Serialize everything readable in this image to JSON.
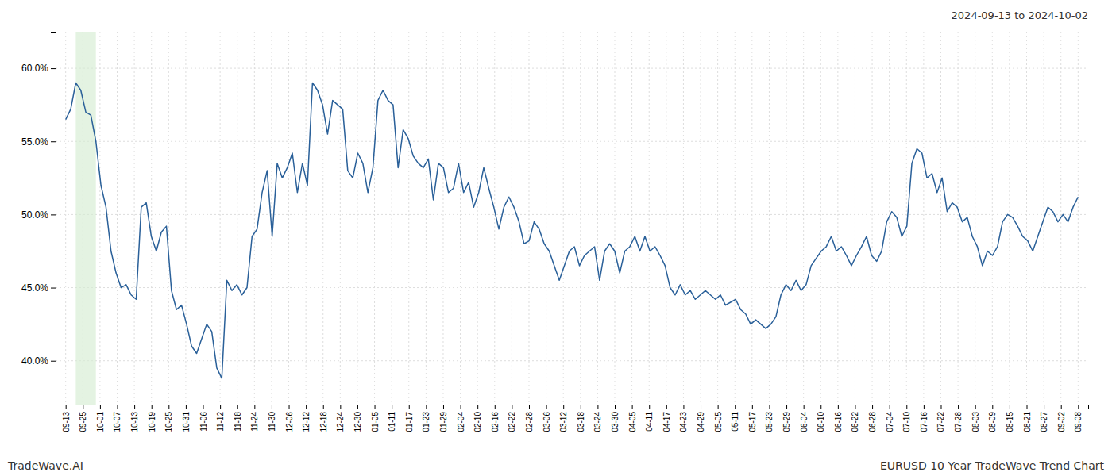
{
  "chart_data": {
    "type": "line",
    "title": "2024-09-13 to 2024-10-02",
    "annotations": [
      {
        "text": "TradeWave.AI"
      },
      {
        "text": "EURUSD 10 Year TradeWave Trend Chart"
      }
    ],
    "color": "#2a6099",
    "grid": true,
    "highlight": {
      "start": 2,
      "end": 6,
      "color": "#d6ecd2"
    },
    "xlim": [
      -2,
      203
    ],
    "ylim": [
      37.0,
      62.5
    ],
    "yticks": [
      {
        "value": 40.0,
        "label": "40.0%"
      },
      {
        "value": 45.0,
        "label": "45.0%"
      },
      {
        "value": 50.0,
        "label": "50.0%"
      },
      {
        "value": 55.0,
        "label": "55.0%"
      },
      {
        "value": 60.0,
        "label": "60.0%"
      }
    ],
    "xticks": [
      {
        "value": 0,
        "label": "09-13"
      },
      {
        "value": 3.407,
        "label": "09-25"
      },
      {
        "value": 6.814,
        "label": "10-01"
      },
      {
        "value": 10.22,
        "label": "10-07"
      },
      {
        "value": 13.627,
        "label": "10-13"
      },
      {
        "value": 17.034,
        "label": "10-19"
      },
      {
        "value": 20.441,
        "label": "10-25"
      },
      {
        "value": 23.847,
        "label": "10-31"
      },
      {
        "value": 27.254,
        "label": "11-06"
      },
      {
        "value": 30.661,
        "label": "11-12"
      },
      {
        "value": 34.068,
        "label": "11-18"
      },
      {
        "value": 37.475,
        "label": "11-24"
      },
      {
        "value": 40.881,
        "label": "11-30"
      },
      {
        "value": 44.288,
        "label": "12-06"
      },
      {
        "value": 47.695,
        "label": "12-12"
      },
      {
        "value": 51.102,
        "label": "12-18"
      },
      {
        "value": 54.508,
        "label": "12-24"
      },
      {
        "value": 57.915,
        "label": "12-30"
      },
      {
        "value": 61.322,
        "label": "01-05"
      },
      {
        "value": 64.729,
        "label": "01-11"
      },
      {
        "value": 68.136,
        "label": "01-17"
      },
      {
        "value": 71.542,
        "label": "01-23"
      },
      {
        "value": 74.949,
        "label": "01-29"
      },
      {
        "value": 78.356,
        "label": "02-04"
      },
      {
        "value": 81.763,
        "label": "02-10"
      },
      {
        "value": 85.169,
        "label": "02-16"
      },
      {
        "value": 88.576,
        "label": "02-22"
      },
      {
        "value": 91.983,
        "label": "02-28"
      },
      {
        "value": 95.39,
        "label": "03-06"
      },
      {
        "value": 98.797,
        "label": "03-12"
      },
      {
        "value": 102.203,
        "label": "03-18"
      },
      {
        "value": 105.61,
        "label": "03-24"
      },
      {
        "value": 109.017,
        "label": "03-30"
      },
      {
        "value": 112.424,
        "label": "04-05"
      },
      {
        "value": 115.831,
        "label": "04-11"
      },
      {
        "value": 119.237,
        "label": "04-17"
      },
      {
        "value": 122.644,
        "label": "04-23"
      },
      {
        "value": 126.051,
        "label": "04-29"
      },
      {
        "value": 129.458,
        "label": "05-05"
      },
      {
        "value": 132.864,
        "label": "05-11"
      },
      {
        "value": 136.271,
        "label": "05-17"
      },
      {
        "value": 139.678,
        "label": "05-23"
      },
      {
        "value": 143.085,
        "label": "05-29"
      },
      {
        "value": 146.492,
        "label": "06-04"
      },
      {
        "value": 149.898,
        "label": "06-10"
      },
      {
        "value": 153.305,
        "label": "06-16"
      },
      {
        "value": 156.712,
        "label": "06-22"
      },
      {
        "value": 160.119,
        "label": "06-28"
      },
      {
        "value": 163.525,
        "label": "07-04"
      },
      {
        "value": 166.932,
        "label": "07-10"
      },
      {
        "value": 170.339,
        "label": "07-16"
      },
      {
        "value": 173.746,
        "label": "07-22"
      },
      {
        "value": 177.153,
        "label": "07-28"
      },
      {
        "value": 180.559,
        "label": "08-03"
      },
      {
        "value": 183.966,
        "label": "08-09"
      },
      {
        "value": 187.373,
        "label": "08-15"
      },
      {
        "value": 190.78,
        "label": "08-21"
      },
      {
        "value": 194.186,
        "label": "08-27"
      },
      {
        "value": 197.593,
        "label": "09-02"
      },
      {
        "value": 201,
        "label": "09-08"
      }
    ],
    "x": [
      0,
      1,
      2,
      3,
      4,
      5,
      6,
      7,
      8,
      9,
      10,
      11,
      12,
      13,
      14,
      15,
      16,
      17,
      18,
      19,
      20,
      21,
      22,
      23,
      24,
      25,
      26,
      27,
      28,
      29,
      30,
      31,
      32,
      33,
      34,
      35,
      36,
      37,
      38,
      39,
      40,
      41,
      42,
      43,
      44,
      45,
      46,
      47,
      48,
      49,
      50,
      51,
      52,
      53,
      54,
      55,
      56,
      57,
      58,
      59,
      60,
      61,
      62,
      63,
      64,
      65,
      66,
      67,
      68,
      69,
      70,
      71,
      72,
      73,
      74,
      75,
      76,
      77,
      78,
      79,
      80,
      81,
      82,
      83,
      84,
      85,
      86,
      87,
      88,
      89,
      90,
      91,
      92,
      93,
      94,
      95,
      96,
      97,
      98,
      99,
      100,
      101,
      102,
      103,
      104,
      105,
      106,
      107,
      108,
      109,
      110,
      111,
      112,
      113,
      114,
      115,
      116,
      117,
      118,
      119,
      120,
      121,
      122,
      123,
      124,
      125,
      126,
      127,
      128,
      129,
      130,
      131,
      132,
      133,
      134,
      135,
      136,
      137,
      138,
      139,
      140,
      141,
      142,
      143,
      144,
      145,
      146,
      147,
      148,
      149,
      150,
      151,
      152,
      153,
      154,
      155,
      156,
      157,
      158,
      159,
      160,
      161,
      162,
      163,
      164,
      165,
      166,
      167,
      168,
      169,
      170,
      171,
      172,
      173,
      174,
      175,
      176,
      177,
      178,
      179,
      180,
      181,
      182,
      183,
      184,
      185,
      186,
      187,
      188,
      189,
      190,
      191,
      192,
      193,
      194,
      195,
      196,
      197,
      198,
      199,
      200,
      201
    ],
    "values": [
      56.5,
      57.2,
      59.0,
      58.5,
      57.0,
      56.8,
      55.0,
      52.0,
      50.5,
      47.5,
      46.0,
      45.0,
      45.2,
      44.5,
      44.2,
      50.5,
      50.8,
      48.5,
      47.5,
      48.8,
      49.2,
      44.8,
      43.5,
      43.8,
      42.5,
      41.0,
      40.5,
      41.5,
      42.5,
      42.0,
      39.5,
      38.8,
      45.5,
      44.8,
      45.2,
      44.5,
      45.0,
      48.5,
      49.0,
      51.5,
      53.0,
      48.5,
      53.5,
      52.5,
      53.2,
      54.2,
      51.5,
      53.5,
      52.0,
      59.0,
      58.5,
      57.5,
      55.5,
      57.8,
      57.5,
      57.2,
      53.0,
      52.5,
      54.2,
      53.5,
      51.5,
      53.2,
      57.8,
      58.5,
      57.8,
      57.5,
      53.2,
      55.8,
      55.2,
      54.0,
      53.5,
      53.2,
      53.8,
      51.0,
      53.5,
      53.2,
      51.5,
      51.8,
      53.5,
      51.5,
      52.2,
      50.5,
      51.5,
      53.2,
      51.8,
      50.5,
      49.0,
      50.5,
      51.2,
      50.5,
      49.5,
      48.0,
      48.2,
      49.5,
      49.0,
      48.0,
      47.5,
      46.5,
      45.5,
      46.5,
      47.5,
      47.8,
      46.5,
      47.2,
      47.5,
      47.8,
      45.5,
      47.5,
      48.0,
      47.5,
      46.0,
      47.5,
      47.8,
      48.5,
      47.5,
      48.5,
      47.5,
      47.8,
      47.2,
      46.5,
      45.0,
      44.5,
      45.2,
      44.5,
      44.8,
      44.2,
      44.5,
      44.8,
      44.5,
      44.2,
      44.5,
      43.8,
      44.0,
      44.2,
      43.5,
      43.2,
      42.5,
      42.8,
      42.5,
      42.2,
      42.5,
      43.0,
      44.5,
      45.2,
      44.8,
      45.5,
      44.8,
      45.2,
      46.5,
      47.0,
      47.5,
      47.8,
      48.5,
      47.5,
      47.8,
      47.2,
      46.5,
      47.2,
      47.8,
      48.5,
      47.2,
      46.8,
      47.5,
      49.5,
      50.2,
      49.8,
      48.5,
      49.2,
      53.5,
      54.5,
      54.2,
      52.5,
      52.8,
      51.5,
      52.5,
      50.2,
      50.8,
      50.5,
      49.5,
      49.8,
      48.5,
      47.8,
      46.5,
      47.5,
      47.2,
      47.8,
      49.5,
      50.0,
      49.8,
      49.2,
      48.5,
      48.2,
      47.5,
      48.5,
      49.5,
      50.5,
      50.2,
      49.5,
      50.0,
      49.5,
      50.5,
      51.2
    ]
  }
}
